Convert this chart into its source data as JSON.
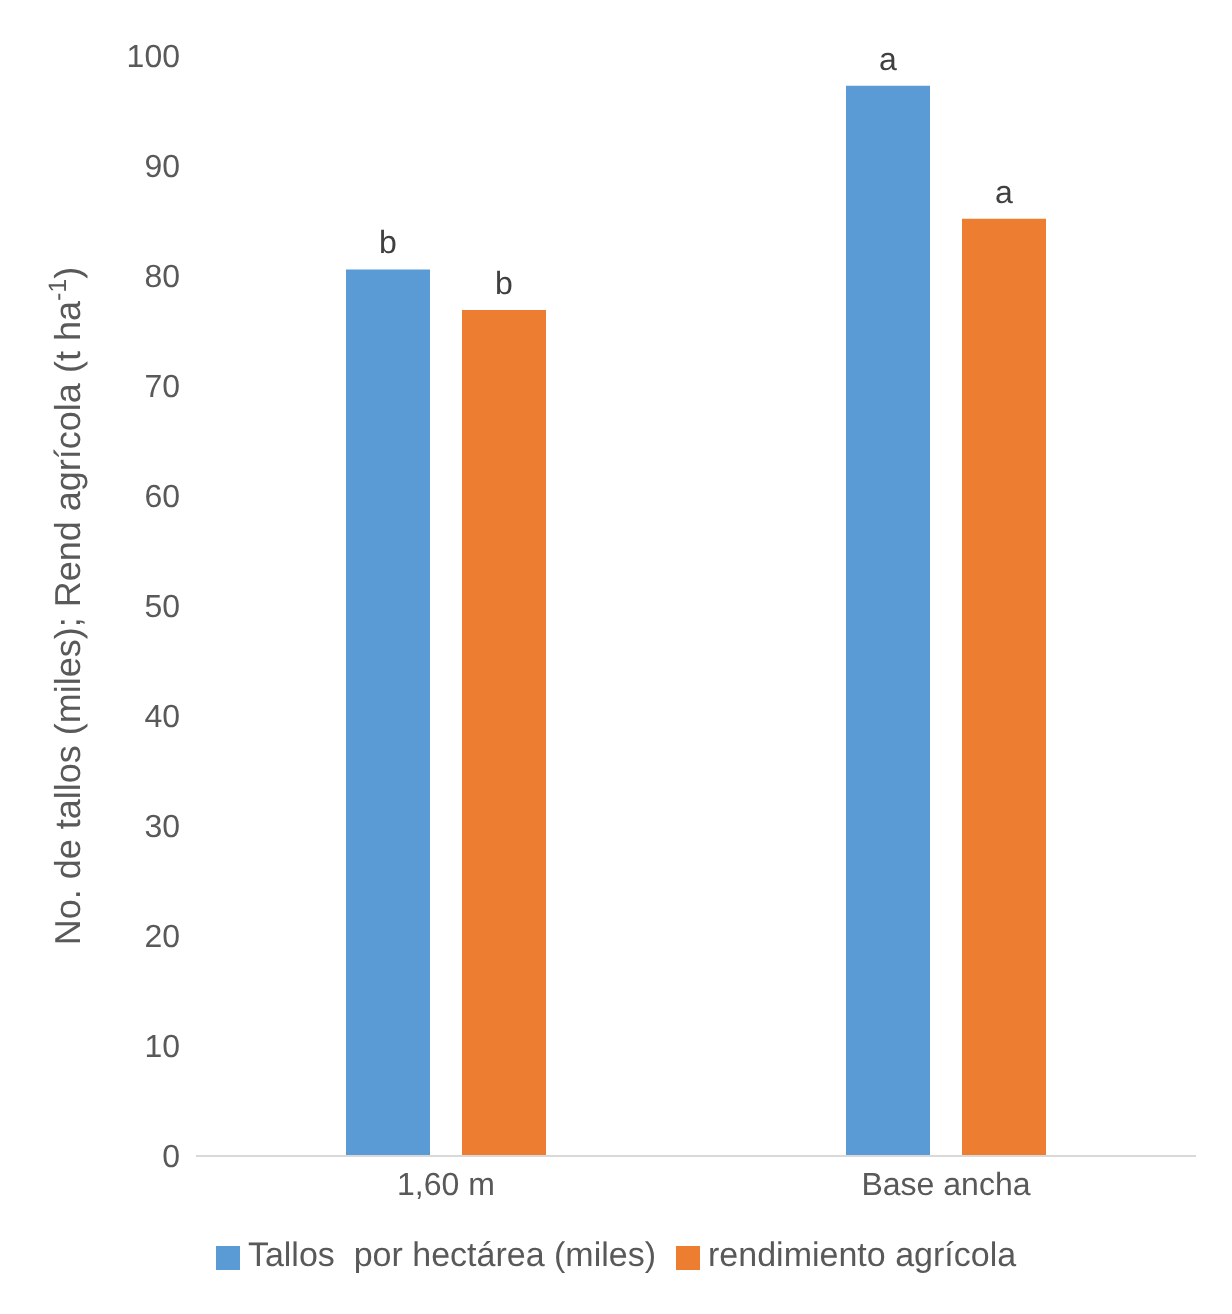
{
  "chart_data": {
    "type": "bar",
    "ylabel": "No. de tallos (miles); Rend agrícola (t ha$^{-1}$)",
    "categories": [
      "1,60 m",
      "Base ancha"
    ],
    "series": [
      {
        "name": "Tallos  por hectárea (miles)",
        "color": "#5b9bd5",
        "values": [
          80.6,
          97.3
        ],
        "value_labels": [
          "b",
          "a"
        ]
      },
      {
        "name": "rendimiento agrícola",
        "color": "#ed7d31",
        "values": [
          76.9,
          85.2
        ],
        "value_labels": [
          "b",
          "a"
        ]
      }
    ],
    "ylim": [
      0,
      100
    ],
    "yticks": [
      0,
      10,
      20,
      30,
      40,
      50,
      60,
      70,
      80,
      90,
      100
    ],
    "grid": false,
    "legend": "bottom"
  }
}
